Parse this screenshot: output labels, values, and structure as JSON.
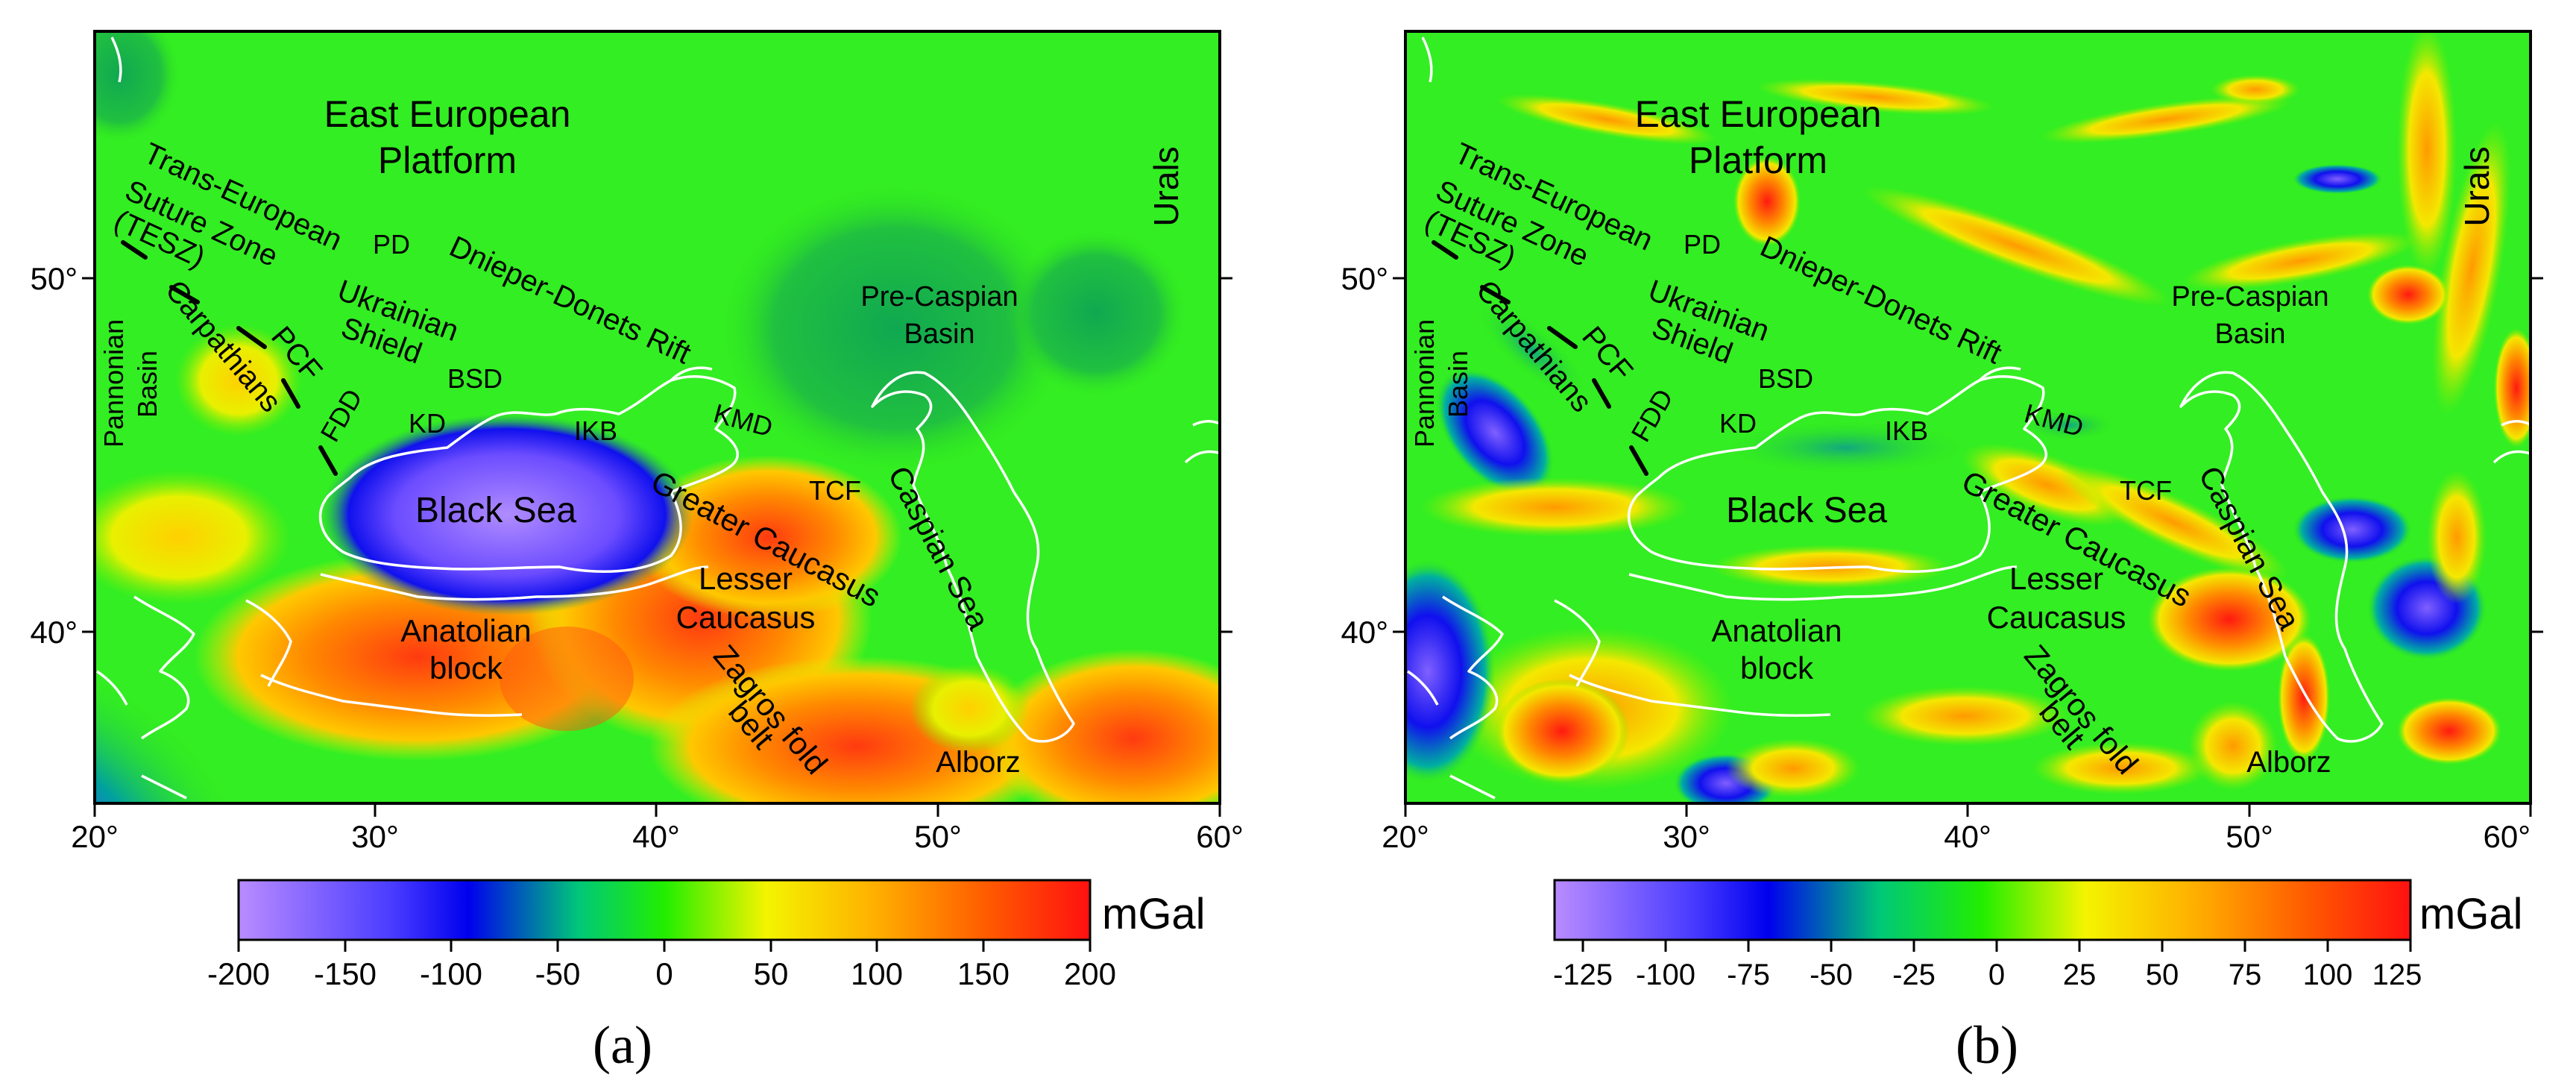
{
  "panels": [
    {
      "id": "a",
      "label": "(a)",
      "axis": {
        "lon_ticks": [
          "20°",
          "30°",
          "40°",
          "50°",
          "60°"
        ],
        "lat_ticks": [
          "50°",
          "40°"
        ]
      },
      "colorbar": {
        "unit": "mGal",
        "ticks": [
          "-200",
          "-150",
          "-100",
          "-50",
          "0",
          "50",
          "100",
          "150",
          "200"
        ]
      },
      "map_labels": {
        "east_european": "East European",
        "platform": "Platform",
        "urals": "Urals",
        "trans_european": "Trans-European",
        "suture_zone": "Suture Zone",
        "tesz": "(TESZ)",
        "pd": "PD",
        "dnieper": "Dnieper-Donets Rift",
        "pre_caspian": "Pre-Caspian",
        "basin": "Basin",
        "pannonian": "Pannonian",
        "pannonian_basin": "Basin",
        "carpathians": "Carpathians",
        "pcf": "PCF",
        "ukrainian": "Ukrainian",
        "shield": "Shield",
        "bsd": "BSD",
        "fdd": "FDD",
        "kd": "KD",
        "ikb": "IKB",
        "kmd": "KMD",
        "tcf": "TCF",
        "black_sea": "Black Sea",
        "greater_caucasus": "Greater Caucasus",
        "caspian_sea": "Caspian Sea",
        "lesser": "Lesser",
        "caucasus": "Caucasus",
        "anatolian": "Anatolian",
        "block": "block",
        "zagros_fold": "Zagros fold",
        "belt": "belt",
        "alborz": "Alborz"
      }
    },
    {
      "id": "b",
      "label": "(b)",
      "axis": {
        "lon_ticks": [
          "20°",
          "30°",
          "40°",
          "50°",
          "60°"
        ],
        "lat_ticks": [
          "50°",
          "40°"
        ]
      },
      "colorbar": {
        "unit": "mGal",
        "ticks": [
          "-125",
          "-100",
          "-75",
          "-50",
          "-25",
          "0",
          "25",
          "50",
          "75",
          "100",
          "125"
        ]
      },
      "map_labels": {
        "east_european": "East European",
        "platform": "Platform",
        "urals": "Urals",
        "trans_european": "Trans-European",
        "suture_zone": "Suture Zone",
        "tesz": "(TESZ)",
        "pd": "PD",
        "dnieper": "Dnieper-Donets Rift",
        "pre_caspian": "Pre-Caspian",
        "basin": "Basin",
        "pannonian": "Pannonian",
        "pannonian_basin": "Basin",
        "carpathians": "Carpathians",
        "pcf": "PCF",
        "ukrainian": "Ukrainian",
        "shield": "Shield",
        "bsd": "BSD",
        "fdd": "FDD",
        "kd": "KD",
        "ikb": "IKB",
        "kmd": "KMD",
        "tcf": "TCF",
        "black_sea": "Black Sea",
        "greater_caucasus": "Greater Caucasus",
        "caspian_sea": "Caspian Sea",
        "lesser": "Lesser",
        "caucasus": "Caucasus",
        "anatolian": "Anatolian",
        "block": "block",
        "zagros_fold": "Zagros fold",
        "belt": "belt",
        "alborz": "Alborz"
      }
    }
  ],
  "colors": {
    "map_background": "#33ee22",
    "coastline": "#ffffff",
    "colorbar_stops": [
      "#b98cff",
      "#0000ee",
      "#00d84a",
      "#22ee00",
      "#f4f400",
      "#ff9a00",
      "#ff1010"
    ]
  }
}
